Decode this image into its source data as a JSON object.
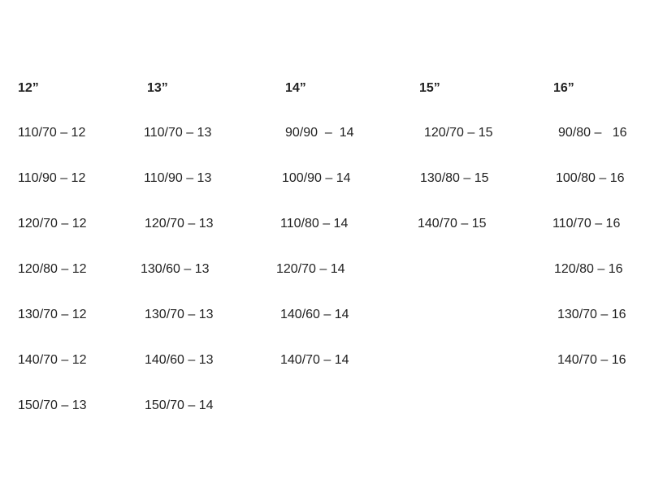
{
  "columns": [
    {
      "header": "12”",
      "sizes": [
        "110/70 – 12",
        "110/90 – 12",
        "120/70 – 12",
        "120/80 – 12",
        "130/70 – 12",
        "140/70 – 12",
        "150/70 – 13"
      ]
    },
    {
      "header": "13”",
      "sizes": [
        "110/70 – 13",
        "110/90 – 13",
        "120/70 – 13",
        "130/60 – 13",
        "130/70 – 13",
        "140/60 – 13",
        "150/70 – 14"
      ]
    },
    {
      "header": "14”",
      "sizes": [
        "90/90  –  14",
        "100/90 – 14",
        "110/80 – 14",
        "120/70 – 14",
        "140/60 – 14",
        "140/70 – 14"
      ]
    },
    {
      "header": "15”",
      "sizes": [
        "120/70 – 15",
        "130/80 – 15",
        "140/70 – 15"
      ]
    },
    {
      "header": "16”",
      "sizes": [
        "90/80 –   16",
        "100/80 – 16",
        "110/70 – 16",
        "120/80 – 16",
        "130/70 – 16",
        "140/70 – 16"
      ]
    }
  ]
}
